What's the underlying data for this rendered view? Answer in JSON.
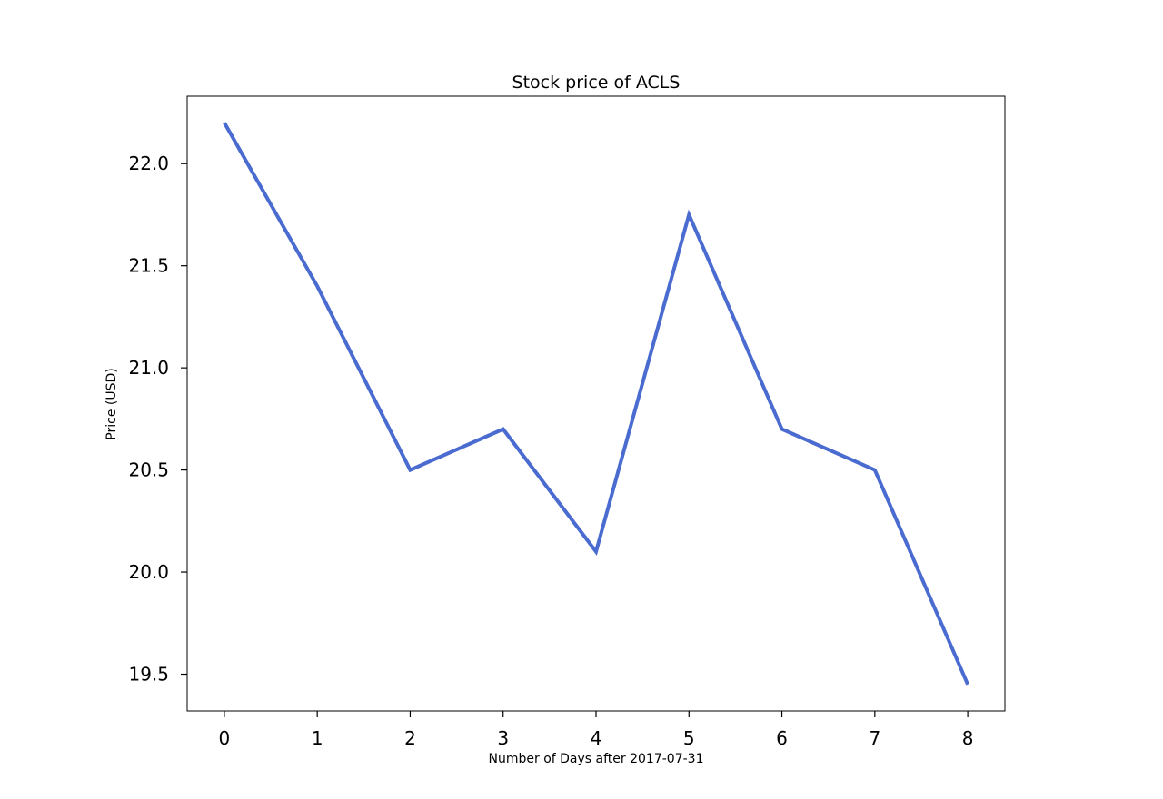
{
  "chart_data": {
    "type": "line",
    "title": "Stock price of ACLS",
    "xlabel": "Number of Days after 2017-07-31",
    "ylabel": "Price (USD)",
    "x": [
      0,
      1,
      2,
      3,
      4,
      5,
      6,
      7,
      8
    ],
    "series": [
      {
        "values": [
          22.2,
          21.4,
          20.5,
          20.7,
          20.1,
          21.75,
          20.7,
          20.5,
          19.45
        ]
      }
    ],
    "xlim": [
      -0.4,
      8.4
    ],
    "ylim": [
      19.32,
      22.33
    ],
    "xticks": [
      "0",
      "1",
      "2",
      "3",
      "4",
      "5",
      "6",
      "7",
      "8"
    ],
    "yticks": [
      "19.5",
      "20.0",
      "20.5",
      "21.0",
      "21.5",
      "22.0"
    ],
    "line_color": "#4a6bcf",
    "grid": false,
    "legend": "none"
  }
}
